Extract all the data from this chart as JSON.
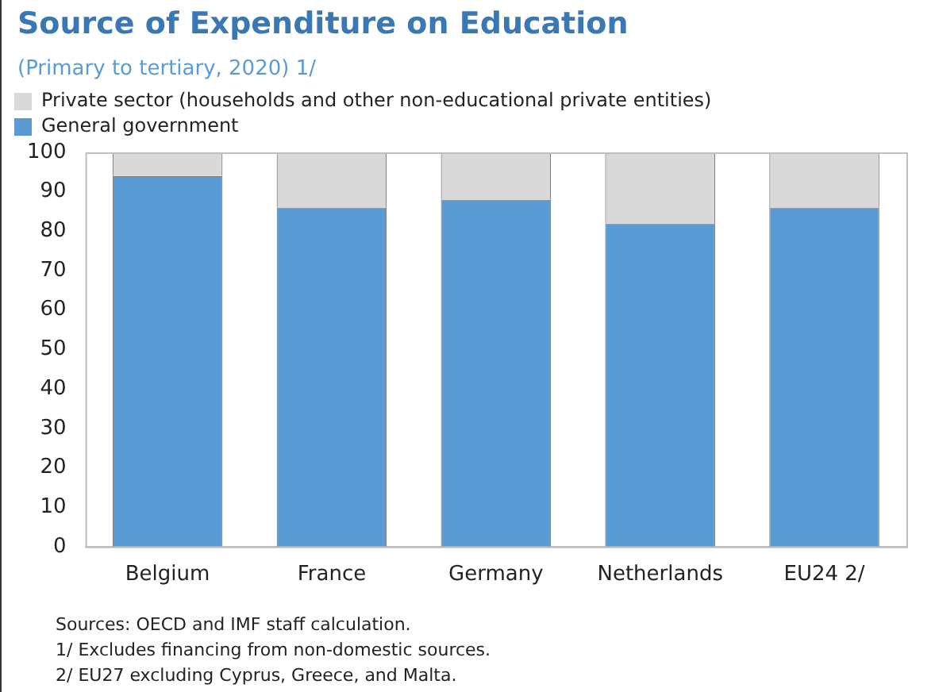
{
  "chart_data": {
    "type": "bar",
    "title": "Source of Expenditure on Education",
    "subtitle": "(Primary to tertiary, 2020) 1/",
    "categories": [
      "Belgium",
      "France",
      "Germany",
      "Netherlands",
      "EU24 2/"
    ],
    "stacked": true,
    "series": [
      {
        "name": "General government",
        "color": "#5b9bd5",
        "values": [
          94,
          86,
          88,
          82,
          86
        ]
      },
      {
        "name": "Private sector (households and other non-educational private entities)",
        "color": "#d9d9d9",
        "values": [
          6,
          14,
          12,
          18,
          14
        ]
      }
    ],
    "ylim": [
      0,
      100
    ],
    "yticks": [
      0,
      10,
      20,
      30,
      40,
      50,
      60,
      70,
      80,
      90,
      100
    ],
    "grid": false,
    "legend": "top",
    "annotations": [
      "Sources: OECD and IMF staff calculation.",
      "1/ Excludes financing from non-domestic sources.",
      "2/ EU27 excluding Cyprus, Greece, and Malta."
    ]
  }
}
